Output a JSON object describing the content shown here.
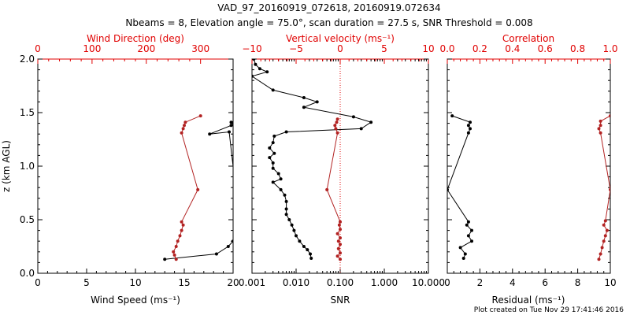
{
  "header": {
    "title_line1": "VAD_97_20160919_072618, 20160919.072634",
    "title_line2": "Nbeams = 8, Elevation angle = 75.0°, scan duration = 27.5 s, SNR Threshold = 0.008"
  },
  "footer": {
    "created": "Plot created on Tue Nov 29 17:41:46 2016"
  },
  "colors": {
    "primary": "#000000",
    "secondary": "#b22222",
    "secondary_axis": "#e00000"
  },
  "chart_data": [
    {
      "type": "line",
      "panel": "left",
      "ylabel": "z (km AGL)",
      "ylim": [
        0.0,
        2.0
      ],
      "yticks": [
        "0.0",
        "0.5",
        "1.0",
        "1.5",
        "2.0"
      ],
      "xlabel": "Wind Speed (ms⁻¹)",
      "xlim": [
        0,
        20
      ],
      "xticks": [
        "0",
        "5",
        "10",
        "15",
        "20"
      ],
      "xlabel_top": "Wind Direction (deg)",
      "xlim_top": [
        0,
        360
      ],
      "xticks_top": [
        "0",
        "100",
        "200",
        "300"
      ],
      "series": [
        {
          "axis": "bottom",
          "color": "black",
          "points": [
            [
              13.0,
              0.13
            ],
            [
              18.3,
              0.18
            ],
            [
              19.5,
              0.25
            ],
            [
              20.0,
              0.3
            ],
            [
              20.8,
              0.36
            ],
            [
              19.6,
              1.32
            ],
            [
              17.6,
              1.3
            ],
            [
              19.8,
              1.38
            ],
            [
              20.4,
              1.43
            ],
            [
              19.8,
              1.41
            ]
          ]
        },
        {
          "axis": "top",
          "color": "red",
          "points": [
            [
              255,
              0.13
            ],
            [
              252,
              0.17
            ],
            [
              250,
              0.2
            ],
            [
              255,
              0.25
            ],
            [
              258,
              0.3
            ],
            [
              262,
              0.35
            ],
            [
              265,
              0.4
            ],
            [
              268,
              0.45
            ],
            [
              265,
              0.48
            ],
            [
              295,
              0.78
            ],
            [
              265,
              1.31
            ],
            [
              268,
              1.35
            ],
            [
              270,
              1.38
            ],
            [
              272,
              1.41
            ],
            [
              300,
              1.47
            ]
          ]
        }
      ]
    },
    {
      "type": "line",
      "panel": "middle",
      "xlabel": "SNR",
      "xscale": "log",
      "xlim": [
        0.001,
        10.0
      ],
      "xticks": [
        "0.001",
        "0.010",
        "0.100",
        "1.000",
        "10.000"
      ],
      "xlabel_top": "Vertical velocity (ms⁻¹)",
      "xlim_top": [
        -10,
        10
      ],
      "xticks_top": [
        "−10",
        "−5",
        "0",
        "5",
        "10"
      ],
      "reference_line": {
        "axis": "top",
        "value": 0,
        "style": "dotted"
      },
      "series": [
        {
          "axis": "bottom",
          "color": "black",
          "points": [
            [
              0.022,
              0.14
            ],
            [
              0.021,
              0.18
            ],
            [
              0.018,
              0.22
            ],
            [
              0.015,
              0.25
            ],
            [
              0.012,
              0.3
            ],
            [
              0.01,
              0.35
            ],
            [
              0.009,
              0.4
            ],
            [
              0.008,
              0.45
            ],
            [
              0.007,
              0.5
            ],
            [
              0.006,
              0.55
            ],
            [
              0.006,
              0.6
            ],
            [
              0.006,
              0.67
            ],
            [
              0.0055,
              0.73
            ],
            [
              0.0045,
              0.78
            ],
            [
              0.003,
              0.85
            ],
            [
              0.0045,
              0.88
            ],
            [
              0.004,
              0.93
            ],
            [
              0.003,
              0.98
            ],
            [
              0.003,
              1.03
            ],
            [
              0.0025,
              1.08
            ],
            [
              0.0032,
              1.12
            ],
            [
              0.0025,
              1.17
            ],
            [
              0.003,
              1.22
            ],
            [
              0.0032,
              1.28
            ],
            [
              0.006,
              1.32
            ],
            [
              0.3,
              1.35
            ],
            [
              0.5,
              1.41
            ],
            [
              0.2,
              1.46
            ],
            [
              0.015,
              1.55
            ],
            [
              0.03,
              1.6
            ],
            [
              0.015,
              1.64
            ],
            [
              0.003,
              1.71
            ],
            [
              0.001,
              1.84
            ],
            [
              0.0022,
              1.88
            ],
            [
              0.0015,
              1.91
            ],
            [
              0.0012,
              1.95
            ],
            [
              0.0011,
              2.0
            ]
          ]
        },
        {
          "axis": "top",
          "color": "red",
          "points": [
            [
              0.0,
              0.13
            ],
            [
              -0.3,
              0.16
            ],
            [
              0.0,
              0.19
            ],
            [
              -0.2,
              0.23
            ],
            [
              0.0,
              0.27
            ],
            [
              -0.2,
              0.3
            ],
            [
              0.0,
              0.33
            ],
            [
              -0.3,
              0.37
            ],
            [
              0.0,
              0.41
            ],
            [
              -0.1,
              0.45
            ],
            [
              0.0,
              0.48
            ],
            [
              -1.5,
              0.78
            ],
            [
              -0.3,
              1.31
            ],
            [
              -0.5,
              1.35
            ],
            [
              -0.6,
              1.38
            ],
            [
              -0.4,
              1.41
            ],
            [
              -0.3,
              1.44
            ]
          ]
        }
      ]
    },
    {
      "type": "line",
      "panel": "right",
      "xlabel": "Residual (ms⁻¹)",
      "xlim": [
        0,
        10
      ],
      "xticks": [
        "0",
        "2",
        "4",
        "6",
        "8",
        "10"
      ],
      "xlabel_top": "Correlation",
      "xlim_top": [
        0.0,
        1.0
      ],
      "xticks_top": [
        "0.0",
        "0.2",
        "0.4",
        "0.6",
        "0.8",
        "1.0"
      ],
      "series": [
        {
          "axis": "bottom",
          "color": "black",
          "points": [
            [
              1.0,
              0.14
            ],
            [
              1.1,
              0.18
            ],
            [
              0.8,
              0.24
            ],
            [
              1.5,
              0.3
            ],
            [
              1.3,
              0.35
            ],
            [
              1.5,
              0.4
            ],
            [
              1.2,
              0.45
            ],
            [
              1.3,
              0.48
            ],
            [
              0.0,
              0.78
            ],
            [
              1.3,
              1.31
            ],
            [
              1.4,
              1.35
            ],
            [
              1.3,
              1.38
            ],
            [
              1.4,
              1.41
            ],
            [
              0.3,
              1.47
            ]
          ]
        },
        {
          "axis": "top",
          "color": "red",
          "points": [
            [
              0.93,
              0.13
            ],
            [
              0.94,
              0.18
            ],
            [
              0.95,
              0.24
            ],
            [
              0.96,
              0.3
            ],
            [
              0.97,
              0.35
            ],
            [
              0.98,
              0.4
            ],
            [
              0.96,
              0.45
            ],
            [
              0.97,
              0.49
            ],
            [
              1.0,
              0.78
            ],
            [
              0.94,
              1.31
            ],
            [
              0.93,
              1.35
            ],
            [
              0.94,
              1.38
            ],
            [
              0.94,
              1.42
            ],
            [
              1.0,
              1.47
            ]
          ]
        }
      ]
    }
  ]
}
